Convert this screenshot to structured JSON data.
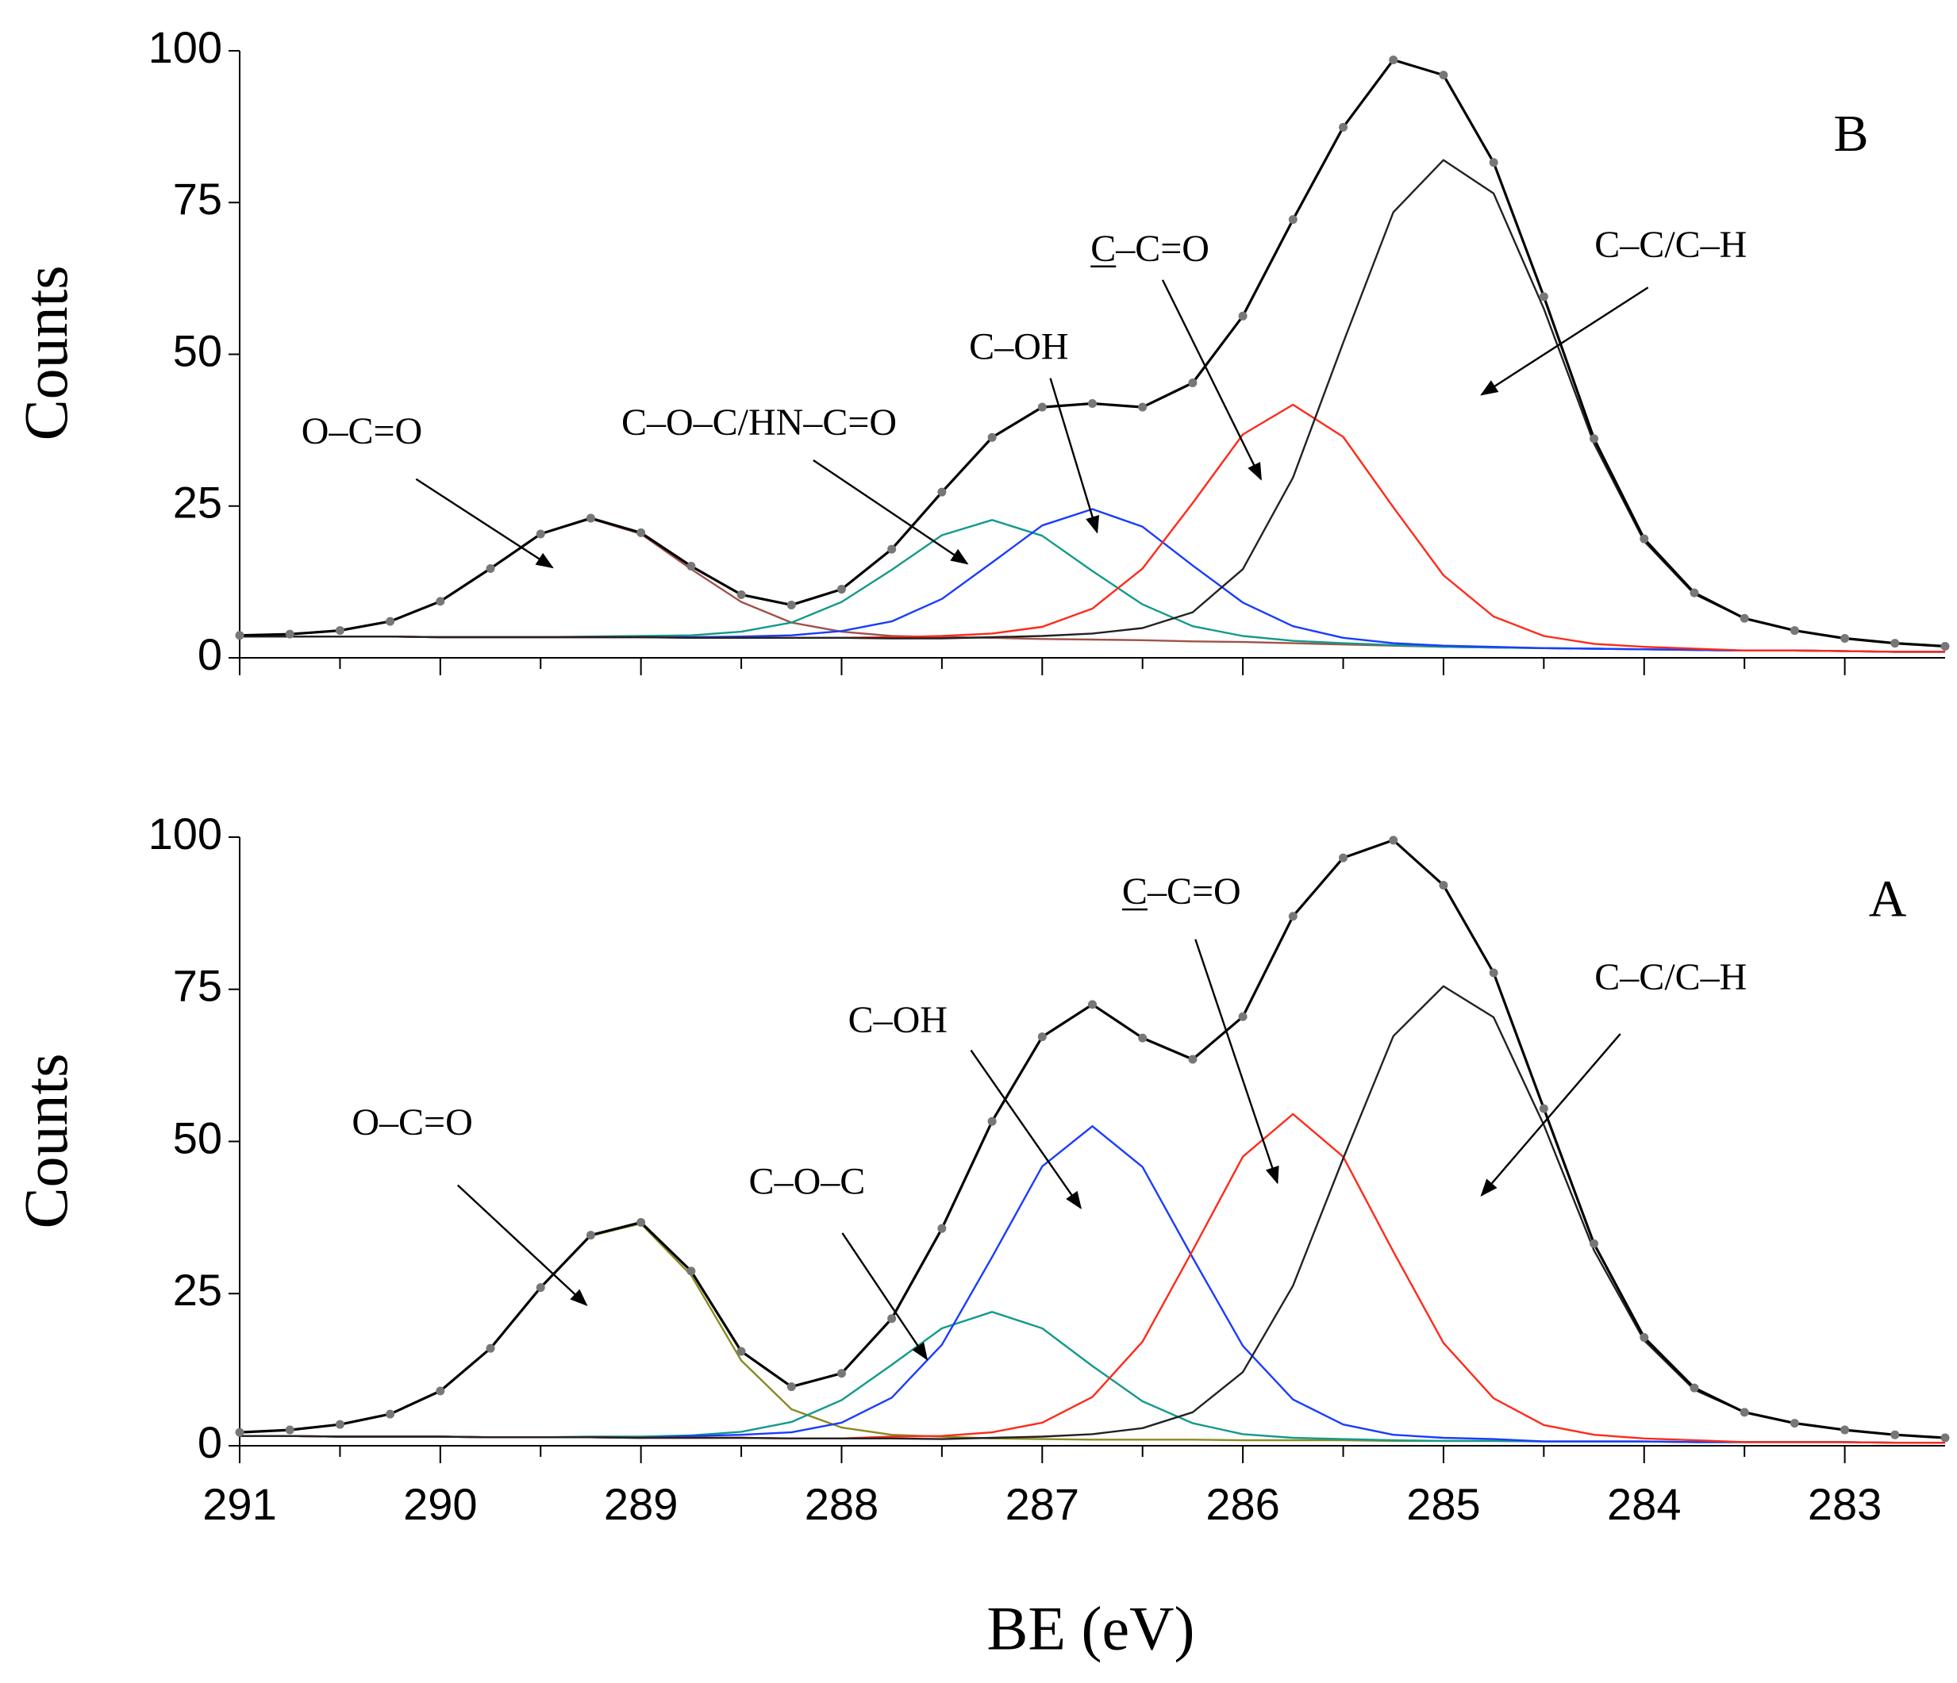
{
  "chart_data": [
    {
      "type": "line",
      "panel_label": "B",
      "ylabel": "Counts",
      "x": [
        291,
        290.75,
        290.5,
        290.25,
        290,
        289.75,
        289.5,
        289.25,
        289,
        288.75,
        288.5,
        288.25,
        288,
        287.75,
        287.5,
        287.25,
        287,
        286.75,
        286.5,
        286.25,
        286,
        285.75,
        285.5,
        285.25,
        285,
        284.75,
        284.5,
        284.25,
        284,
        283.75,
        283.5,
        283.25,
        283,
        282.75,
        282.5
      ],
      "xlim": [
        291,
        282.5
      ],
      "xticks": [
        291,
        290,
        289,
        288,
        287,
        286,
        285,
        284,
        283
      ],
      "xminorticks": [
        290.5,
        289.5,
        288.5,
        287.5,
        286.5,
        285.5,
        284.5,
        283.5
      ],
      "xtick_labels": false,
      "ylim": [
        0,
        100
      ],
      "yticks": [
        0,
        25,
        50,
        75,
        100
      ],
      "series": [
        {
          "color": "#a0524a",
          "values": [
            3.7,
            3.9,
            4.5,
            6.0,
            9.3,
            14.7,
            20.4,
            22.9,
            20.4,
            14.6,
            9.2,
            5.8,
            4.3,
            3.6,
            3.4,
            3.3,
            3.1,
            3.0,
            2.9,
            2.7,
            2.6,
            2.4,
            2.2,
            2.0,
            1.8,
            1.7,
            1.6,
            1.5,
            1.4,
            1.3,
            1.2,
            1.2,
            1.1,
            1.0,
            1.0
          ]
        },
        {
          "color": "#139a8a",
          "values": [
            3.5,
            3.5,
            3.5,
            3.5,
            3.4,
            3.4,
            3.4,
            3.5,
            3.6,
            3.7,
            4.3,
            5.8,
            9.2,
            14.5,
            20.2,
            22.7,
            20.1,
            14.3,
            8.8,
            5.2,
            3.6,
            2.8,
            2.4,
            2.1,
            1.8,
            1.7,
            1.6,
            1.5,
            1.4,
            1.3,
            1.2,
            1.2,
            1.1,
            1.0,
            1.0
          ]
        },
        {
          "color": "#1a3cff",
          "values": [
            3.5,
            3.5,
            3.5,
            3.5,
            3.4,
            3.4,
            3.4,
            3.4,
            3.4,
            3.4,
            3.5,
            3.7,
            4.4,
            6.0,
            9.7,
            15.7,
            21.8,
            24.5,
            21.6,
            15.2,
            9.1,
            5.2,
            3.3,
            2.4,
            2.0,
            1.8,
            1.6,
            1.5,
            1.4,
            1.3,
            1.2,
            1.2,
            1.1,
            1.0,
            1.0
          ]
        },
        {
          "color": "#ff2a1a",
          "values": [
            3.5,
            3.5,
            3.5,
            3.5,
            3.4,
            3.4,
            3.4,
            3.4,
            3.4,
            3.3,
            3.3,
            3.3,
            3.3,
            3.4,
            3.6,
            4.0,
            5.1,
            8.1,
            14.7,
            25.5,
            36.8,
            41.7,
            36.4,
            24.8,
            13.6,
            6.8,
            3.6,
            2.3,
            1.8,
            1.5,
            1.2,
            1.2,
            1.1,
            1.0,
            1.0
          ]
        },
        {
          "color": "#222222",
          "values": [
            3.5,
            3.5,
            3.5,
            3.5,
            3.4,
            3.4,
            3.4,
            3.4,
            3.4,
            3.3,
            3.3,
            3.3,
            3.3,
            3.2,
            3.2,
            3.4,
            3.6,
            4.0,
            4.9,
            7.5,
            14.6,
            29.7,
            51.9,
            73.4,
            82.0,
            76.5,
            57.5,
            35.3,
            19.2,
            10.5,
            6.5,
            4.5,
            3.2,
            2.4,
            1.9
          ]
        },
        {
          "color": "#000000",
          "markers": true,
          "values": [
            3.7,
            3.9,
            4.5,
            6.0,
            9.3,
            14.7,
            20.4,
            23.0,
            20.6,
            15.1,
            10.4,
            8.7,
            11.3,
            17.9,
            27.3,
            36.3,
            41.3,
            41.9,
            41.3,
            45.3,
            56.3,
            72.2,
            87.4,
            98.5,
            96.0,
            81.6,
            59.5,
            36.1,
            19.6,
            10.7,
            6.5,
            4.5,
            3.2,
            2.4,
            1.9
          ]
        }
      ],
      "annotations": [
        "O–C=O",
        "C–O–C/HN–C=O",
        "C–OH",
        "C–C=O",
        "C–C/C–H"
      ]
    },
    {
      "type": "line",
      "panel_label": "A",
      "ylabel": "Counts",
      "xlabel": "BE (eV)",
      "x": [
        291,
        290.75,
        290.5,
        290.25,
        290,
        289.75,
        289.5,
        289.25,
        289,
        288.75,
        288.5,
        288.25,
        288,
        287.75,
        287.5,
        287.25,
        287,
        286.75,
        286.5,
        286.25,
        286,
        285.75,
        285.5,
        285.25,
        285,
        284.75,
        284.5,
        284.25,
        284,
        283.75,
        283.5,
        283.25,
        283,
        282.75,
        282.5
      ],
      "xlim": [
        291,
        282.5
      ],
      "xticks": [
        291,
        290,
        289,
        288,
        287,
        286,
        285,
        284,
        283
      ],
      "xminorticks": [
        290.5,
        289.5,
        288.5,
        287.5,
        286.5,
        285.5,
        284.5,
        283.5
      ],
      "xtick_labels": true,
      "ylim": [
        0,
        100
      ],
      "yticks": [
        0,
        25,
        50,
        75,
        100
      ],
      "series": [
        {
          "color": "#8a8a20",
          "values": [
            2.2,
            2.6,
            3.5,
            5.2,
            9.0,
            16.0,
            26.0,
            34.5,
            36.5,
            28.0,
            14.0,
            6.0,
            3.0,
            1.8,
            1.5,
            1.2,
            1.1,
            1.0,
            1.0,
            1.0,
            0.9,
            0.9,
            0.9,
            0.8,
            0.8,
            0.8,
            0.7,
            0.7,
            0.7,
            0.6,
            0.6,
            0.6,
            0.6,
            0.5,
            0.5
          ]
        },
        {
          "color": "#139a8a",
          "values": [
            1.6,
            1.6,
            1.5,
            1.5,
            1.5,
            1.4,
            1.4,
            1.5,
            1.5,
            1.7,
            2.3,
            3.9,
            7.5,
            13.3,
            19.3,
            22.0,
            19.3,
            13.1,
            7.3,
            3.7,
            1.9,
            1.3,
            1.1,
            0.9,
            0.8,
            0.8,
            0.7,
            0.7,
            0.7,
            0.6,
            0.6,
            0.6,
            0.6,
            0.5,
            0.5
          ]
        },
        {
          "color": "#1a3cff",
          "values": [
            1.6,
            1.6,
            1.5,
            1.5,
            1.5,
            1.4,
            1.4,
            1.4,
            1.3,
            1.6,
            1.8,
            2.2,
            3.8,
            7.9,
            16.6,
            31.0,
            45.9,
            52.5,
            45.8,
            30.9,
            16.4,
            7.6,
            3.5,
            1.8,
            1.3,
            1.1,
            0.7,
            0.7,
            0.7,
            0.6,
            0.6,
            0.6,
            0.6,
            0.5,
            0.5
          ]
        },
        {
          "color": "#ff2a1a",
          "values": [
            1.6,
            1.6,
            1.5,
            1.5,
            1.5,
            1.4,
            1.4,
            1.4,
            1.3,
            1.3,
            1.3,
            1.2,
            1.2,
            1.5,
            1.6,
            2.2,
            3.8,
            8.0,
            17.1,
            32.1,
            47.5,
            54.5,
            47.5,
            31.9,
            16.9,
            7.8,
            3.4,
            1.8,
            1.2,
            0.9,
            0.6,
            0.6,
            0.6,
            0.5,
            0.5
          ]
        },
        {
          "color": "#222222",
          "values": [
            1.6,
            1.6,
            1.5,
            1.5,
            1.5,
            1.4,
            1.4,
            1.4,
            1.3,
            1.3,
            1.3,
            1.2,
            1.2,
            1.2,
            1.1,
            1.3,
            1.5,
            1.9,
            2.9,
            5.5,
            12.1,
            26.3,
            47.2,
            67.3,
            75.5,
            70.4,
            52.7,
            32.1,
            17.3,
            9.2,
            5.5,
            3.7,
            2.6,
            1.8,
            1.3
          ]
        },
        {
          "color": "#000000",
          "markers": true,
          "values": [
            2.2,
            2.6,
            3.5,
            5.2,
            9.0,
            16.0,
            26.0,
            34.6,
            36.7,
            28.7,
            15.5,
            9.7,
            11.9,
            20.9,
            35.7,
            53.3,
            67.2,
            72.5,
            67.0,
            63.5,
            70.5,
            87.0,
            96.6,
            99.5,
            92.1,
            77.7,
            55.4,
            33.2,
            17.8,
            9.5,
            5.5,
            3.7,
            2.6,
            1.8,
            1.3
          ]
        }
      ],
      "annotations": [
        "O–C=O",
        "C–O–C",
        "C–OH",
        "C–C=O",
        "C–C/C–H"
      ]
    }
  ]
}
